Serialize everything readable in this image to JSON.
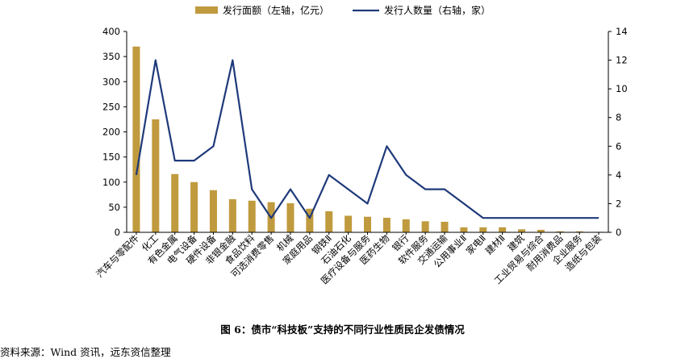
{
  "chart_data": {
    "type": "bar+line",
    "categories": [
      "汽车与零配件",
      "化工",
      "有色金属",
      "电气设备",
      "硬件设备",
      "非银金融",
      "食品饮料",
      "可选消费零售",
      "机械",
      "家庭用品",
      "钢铁Ⅱ",
      "石油石化",
      "医疗设备与服务",
      "医药生物",
      "银行",
      "软件服务",
      "交通运输",
      "公用事业Ⅱ",
      "家电Ⅱ",
      "建材Ⅱ",
      "建筑",
      "工业贸易与综合",
      "耐用消费品",
      "企业服务",
      "造纸与包装"
    ],
    "series": [
      {
        "name": "发行面额（左轴，亿元）",
        "type": "bar",
        "axis": "left",
        "color": "#C09A3E",
        "values": [
          370,
          225,
          116,
          100,
          84,
          66,
          63,
          60,
          58,
          47,
          42,
          33,
          31,
          29,
          26,
          22,
          21,
          10,
          10,
          10,
          6,
          5,
          2,
          2,
          1
        ]
      },
      {
        "name": "发行人数量（右轴，家）",
        "type": "line",
        "axis": "right",
        "color": "#1F3A7A",
        "values": [
          4,
          12,
          5,
          5,
          6,
          12,
          3,
          1,
          3,
          1,
          4,
          3,
          2,
          6,
          4,
          3,
          3,
          2,
          1,
          1,
          1,
          1,
          1,
          1,
          1
        ]
      }
    ],
    "y_left": {
      "min": 0,
      "max": 400,
      "ticks": [
        0,
        50,
        100,
        150,
        200,
        250,
        300,
        350,
        400
      ]
    },
    "y_right": {
      "min": 0,
      "max": 14,
      "ticks": [
        0,
        2,
        4,
        6,
        8,
        10,
        12,
        14
      ]
    },
    "legend_position": "top-center"
  },
  "caption": "图 6：债市“科技板”支持的不同行业性质民企发债情况",
  "source": "资料来源：Wind 资讯，远东资信整理"
}
